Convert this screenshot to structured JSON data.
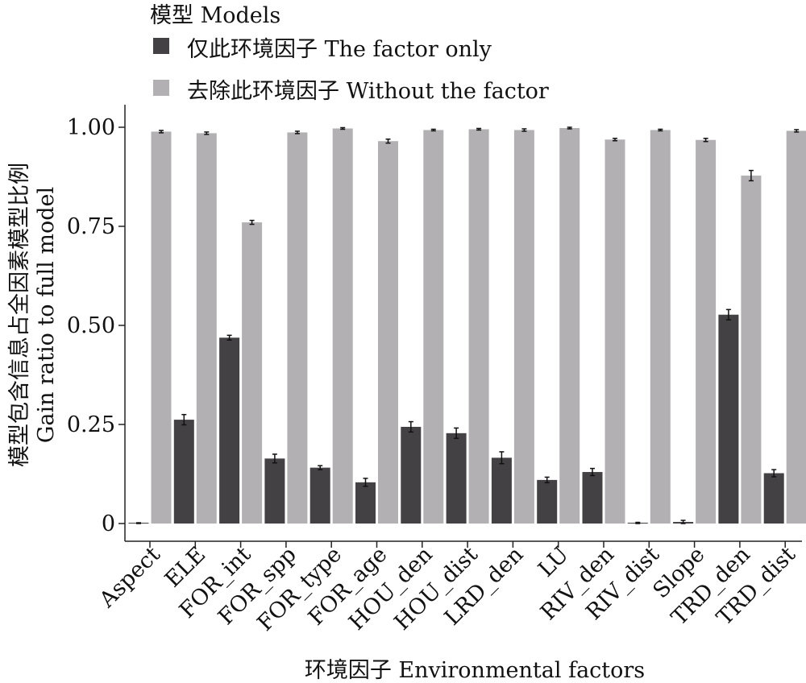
{
  "chart_data": {
    "type": "bar",
    "legend": {
      "title": "模型 Models",
      "placement": "top-left",
      "entries": [
        {
          "label": "仅此环境因子 The factor only",
          "color": "#444144"
        },
        {
          "label": "去除此环境因子 Without the factor",
          "color": "#b3b0b4"
        }
      ]
    },
    "xlabel": "环境因子 Environmental factors",
    "ylabel": [
      "模型包含信息占全因素模型比例",
      "Gain ratio to full model"
    ],
    "ylim": [
      0,
      1.0
    ],
    "yticks": [
      {
        "value": 0,
        "label": "0"
      },
      {
        "value": 0.25,
        "label": "0.25"
      },
      {
        "value": 0.5,
        "label": "0.50"
      },
      {
        "value": 0.75,
        "label": "0.75"
      },
      {
        "value": 1.0,
        "label": "1.00"
      }
    ],
    "grid": false,
    "categories": [
      "Aspect",
      "ELE",
      "FOR_int",
      "FOR_spp",
      "FOR_type",
      "FOR_age",
      "HOU_den",
      "HOU_dist",
      "LRD_den",
      "LU",
      "RIV_den",
      "RIV_dist",
      "Slope",
      "TRD_den",
      "TRD_dist"
    ],
    "series": [
      {
        "name": "仅此环境因子 The factor only",
        "color": "#444144",
        "values": [
          0.0,
          0.262,
          0.469,
          0.164,
          0.141,
          0.104,
          0.244,
          0.228,
          0.166,
          0.11,
          0.13,
          0.001,
          0.004,
          0.527,
          0.127
        ],
        "errors": [
          0.002,
          0.013,
          0.006,
          0.011,
          0.005,
          0.01,
          0.013,
          0.013,
          0.015,
          0.007,
          0.009,
          0.002,
          0.004,
          0.013,
          0.009
        ]
      },
      {
        "name": "去除此环境因子 Without the factor",
        "color": "#b3b0b4",
        "values": [
          0.989,
          0.985,
          0.76,
          0.987,
          0.997,
          0.965,
          0.993,
          0.995,
          0.993,
          0.998,
          0.969,
          0.993,
          0.968,
          0.878,
          0.991
        ],
        "errors": [
          0.003,
          0.003,
          0.005,
          0.003,
          0.002,
          0.005,
          0.002,
          0.002,
          0.003,
          0.002,
          0.003,
          0.002,
          0.004,
          0.013,
          0.003
        ]
      }
    ]
  }
}
